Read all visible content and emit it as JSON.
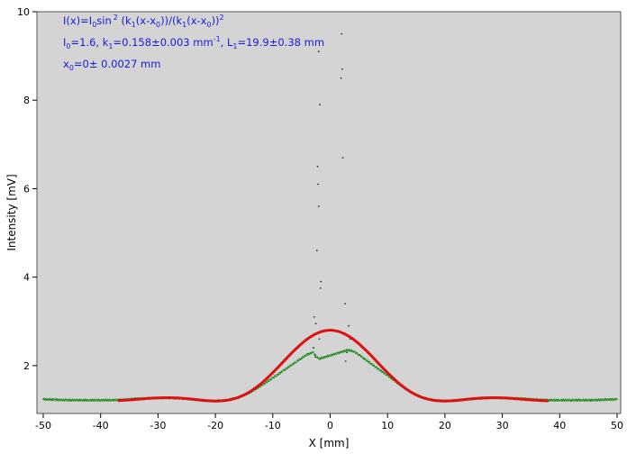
{
  "chart_data": {
    "type": "scatter",
    "title": "",
    "xlabel": "X [mm]",
    "ylabel": "Intensity [mV]",
    "xlim": [
      -50,
      50
    ],
    "ylim": [
      1,
      10
    ],
    "x_ticks": [
      -50,
      -40,
      -30,
      -20,
      -10,
      0,
      10,
      20,
      30,
      40,
      50
    ],
    "y_ticks": [
      2,
      4,
      6,
      8,
      10
    ],
    "grid": false,
    "background_color": "#d4d4d4",
    "annotations": {
      "formula": {
        "prefix": "I(x)=I",
        "sub_i0": "0",
        "sin": "sin",
        "sup_2": "2",
        "arg_open": " (k",
        "sub_k1a": "1",
        "arg_mid1": "(x-x",
        "sub_x0a": "0",
        "arg_mid2": "))/(k",
        "sub_k1b": "1",
        "arg_mid3": "(x-x",
        "sub_x0b": "0",
        "arg_close": "))",
        "sup_2b": "2"
      },
      "params": {
        "i0_label": "I",
        "i0_sub": "0",
        "i0_value": "=1.6,  k",
        "k1_sub": "1",
        "k1_value": "=0.158±0.003 mm",
        "k1_sup": "-1",
        "l1_sep": ",   L",
        "l1_sub": "1",
        "l1_value": "=19.9±0.38 mm"
      },
      "x0": {
        "label": "x",
        "sub": "0",
        "value": "=0±  0.0027 mm"
      }
    },
    "series": [
      {
        "kind": "measured",
        "color": "#1f8a1f",
        "baseline": 1.23,
        "x_range": [
          -50,
          50
        ],
        "points": [
          [
            -50,
            1.24
          ],
          [
            -48,
            1.23
          ],
          [
            -46,
            1.22
          ],
          [
            -44,
            1.22
          ],
          [
            -42,
            1.22
          ],
          [
            -40,
            1.22
          ],
          [
            -38,
            1.22
          ],
          [
            -36,
            1.23
          ],
          [
            -34,
            1.25
          ],
          [
            -32,
            1.26
          ],
          [
            -30,
            1.27
          ],
          [
            -28,
            1.27
          ],
          [
            -26,
            1.26
          ],
          [
            -24,
            1.24
          ],
          [
            -22,
            1.21
          ],
          [
            -20,
            1.2
          ],
          [
            -18,
            1.22
          ],
          [
            -16,
            1.28
          ],
          [
            -14,
            1.39
          ],
          [
            -12,
            1.55
          ],
          [
            -10,
            1.72
          ],
          [
            -8,
            1.9
          ],
          [
            -6,
            2.08
          ],
          [
            -5,
            2.17
          ],
          [
            -4,
            2.25
          ],
          [
            -3,
            2.3
          ],
          [
            -2,
            2.15
          ],
          [
            3,
            2.35
          ],
          [
            4,
            2.33
          ],
          [
            5,
            2.25
          ],
          [
            6,
            2.15
          ],
          [
            8,
            1.96
          ],
          [
            10,
            1.78
          ],
          [
            12,
            1.58
          ],
          [
            14,
            1.4
          ],
          [
            16,
            1.28
          ],
          [
            18,
            1.22
          ],
          [
            20,
            1.2
          ],
          [
            22,
            1.21
          ],
          [
            24,
            1.24
          ],
          [
            26,
            1.26
          ],
          [
            28,
            1.27
          ],
          [
            30,
            1.27
          ],
          [
            32,
            1.26
          ],
          [
            34,
            1.25
          ],
          [
            36,
            1.23
          ],
          [
            38,
            1.22
          ],
          [
            40,
            1.22
          ],
          [
            42,
            1.22
          ],
          [
            44,
            1.22
          ],
          [
            46,
            1.22
          ],
          [
            48,
            1.23
          ],
          [
            50,
            1.24
          ]
        ]
      },
      {
        "kind": "outliers",
        "color": "#333333",
        "points": [
          [
            -2,
            9.1
          ],
          [
            -1.8,
            7.9
          ],
          [
            -2.2,
            6.5
          ],
          [
            -2.1,
            6.1
          ],
          [
            -2.0,
            5.6
          ],
          [
            -2.3,
            4.6
          ],
          [
            -1.6,
            3.9
          ],
          [
            -1.7,
            3.75
          ],
          [
            -2.8,
            3.1
          ],
          [
            -2.5,
            2.95
          ],
          [
            -1.9,
            2.6
          ],
          [
            -2.9,
            2.4
          ],
          [
            -2.6,
            2.2
          ],
          [
            2.0,
            9.5
          ],
          [
            2.1,
            8.7
          ],
          [
            1.9,
            8.5
          ],
          [
            2.2,
            6.7
          ],
          [
            2.6,
            3.4
          ],
          [
            3.2,
            2.9
          ],
          [
            2.7,
            2.1
          ],
          [
            3.5,
            2.6
          ],
          [
            2.9,
            2.3
          ]
        ]
      },
      {
        "kind": "fit",
        "color": "#dd1111",
        "x_range": [
          -37,
          38
        ],
        "params": {
          "I0": 1.6,
          "k1": 0.158,
          "x0": 0,
          "offset": 1.2
        }
      }
    ]
  }
}
